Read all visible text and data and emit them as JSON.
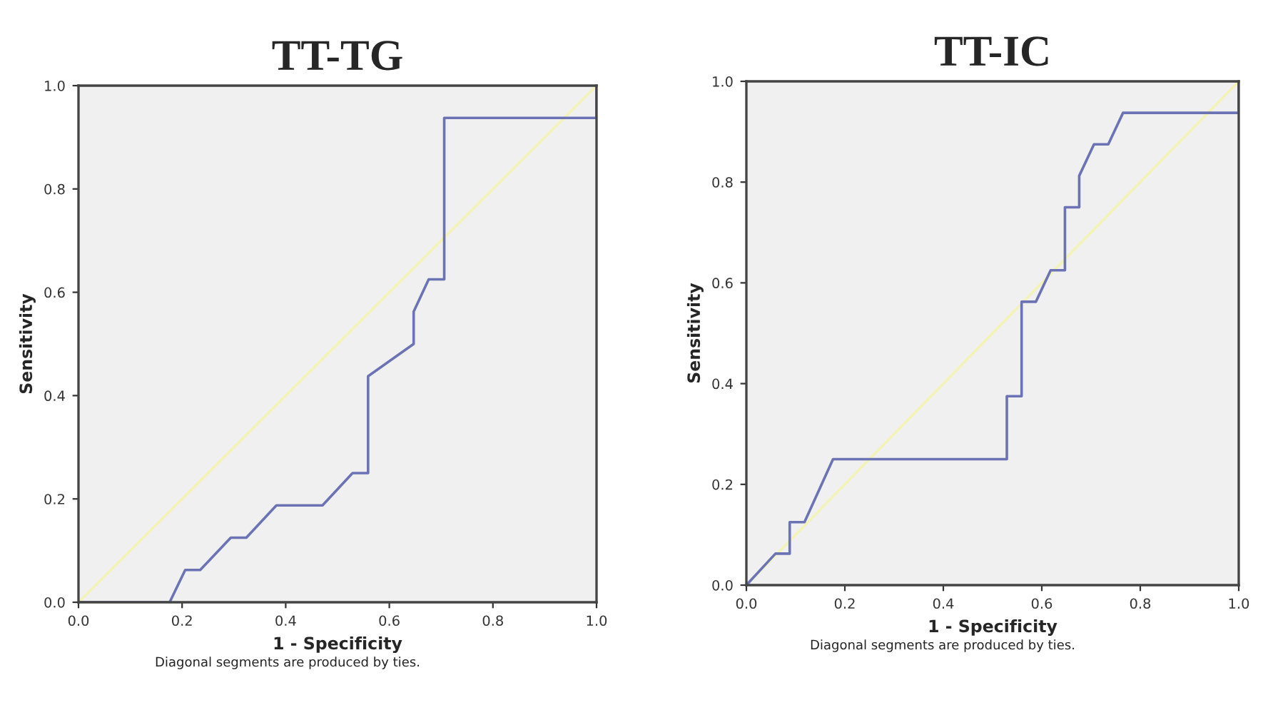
{
  "chart_data": [
    {
      "type": "line",
      "title": "TT-TG",
      "xlabel": "1 - Specificity",
      "ylabel": "Sensitivity",
      "xlim": [
        0,
        1
      ],
      "ylim": [
        0,
        1
      ],
      "xticks": [
        {
          "value": 0,
          "label": "0.0"
        },
        {
          "value": 0.2,
          "label": "0.2"
        },
        {
          "value": 0.4,
          "label": "0.4"
        },
        {
          "value": 0.6,
          "label": "0.6"
        },
        {
          "value": 0.8,
          "label": "0.8"
        },
        {
          "value": 1,
          "label": "1.0"
        }
      ],
      "yticks": [
        {
          "value": 0,
          "label": "0.0"
        },
        {
          "value": 0.2,
          "label": "0.2"
        },
        {
          "value": 0.4,
          "label": "0.4"
        },
        {
          "value": 0.6,
          "label": "0.6"
        },
        {
          "value": 0.8,
          "label": "0.8"
        },
        {
          "value": 1,
          "label": "1.0"
        }
      ],
      "grid": false,
      "legend": false,
      "series": [
        {
          "color": "#f3f3b8",
          "x": [
            0,
            1
          ],
          "values": [
            0,
            1
          ]
        },
        {
          "color": "#6b73b5",
          "x": [
            0,
            0.176,
            0.206,
            0.235,
            0.294,
            0.324,
            0.382,
            0.471,
            0.529,
            0.559,
            0.559,
            0.647,
            0.647,
            0.676,
            0.706,
            0.706,
            1,
            1
          ],
          "values": [
            0,
            0,
            0.0625,
            0.0625,
            0.125,
            0.125,
            0.1875,
            0.1875,
            0.25,
            0.25,
            0.4375,
            0.5,
            0.5625,
            0.625,
            0.625,
            0.9375,
            0.9375,
            1
          ]
        }
      ],
      "annotations": [
        "Diagonal segments are produced by ties."
      ]
    },
    {
      "type": "line",
      "title": "TT-IC",
      "xlabel": "1 - Specificity",
      "ylabel": "Sensitivity",
      "xlim": [
        0,
        1
      ],
      "ylim": [
        0,
        1
      ],
      "xticks": [
        {
          "value": 0,
          "label": "0.0"
        },
        {
          "value": 0.2,
          "label": "0.2"
        },
        {
          "value": 0.4,
          "label": "0.4"
        },
        {
          "value": 0.6,
          "label": "0.6"
        },
        {
          "value": 0.8,
          "label": "0.8"
        },
        {
          "value": 1,
          "label": "1.0"
        }
      ],
      "yticks": [
        {
          "value": 0,
          "label": "0.0"
        },
        {
          "value": 0.2,
          "label": "0.2"
        },
        {
          "value": 0.4,
          "label": "0.4"
        },
        {
          "value": 0.6,
          "label": "0.6"
        },
        {
          "value": 0.8,
          "label": "0.8"
        },
        {
          "value": 1,
          "label": "1.0"
        }
      ],
      "grid": false,
      "legend": false,
      "series": [
        {
          "color": "#f3f3b8",
          "x": [
            0,
            1
          ],
          "values": [
            0,
            1
          ]
        },
        {
          "color": "#6b73b5",
          "x": [
            0,
            0.059,
            0.088,
            0.088,
            0.118,
            0.176,
            0.529,
            0.529,
            0.559,
            0.559,
            0.588,
            0.618,
            0.647,
            0.647,
            0.676,
            0.676,
            0.706,
            0.735,
            0.765,
            1,
            1
          ],
          "values": [
            0,
            0.0625,
            0.0625,
            0.125,
            0.125,
            0.25,
            0.25,
            0.375,
            0.375,
            0.5625,
            0.5625,
            0.625,
            0.625,
            0.75,
            0.75,
            0.8125,
            0.875,
            0.875,
            0.9375,
            0.9375,
            1
          ]
        }
      ],
      "annotations": [
        "Diagonal segments are produced by ties."
      ]
    }
  ]
}
